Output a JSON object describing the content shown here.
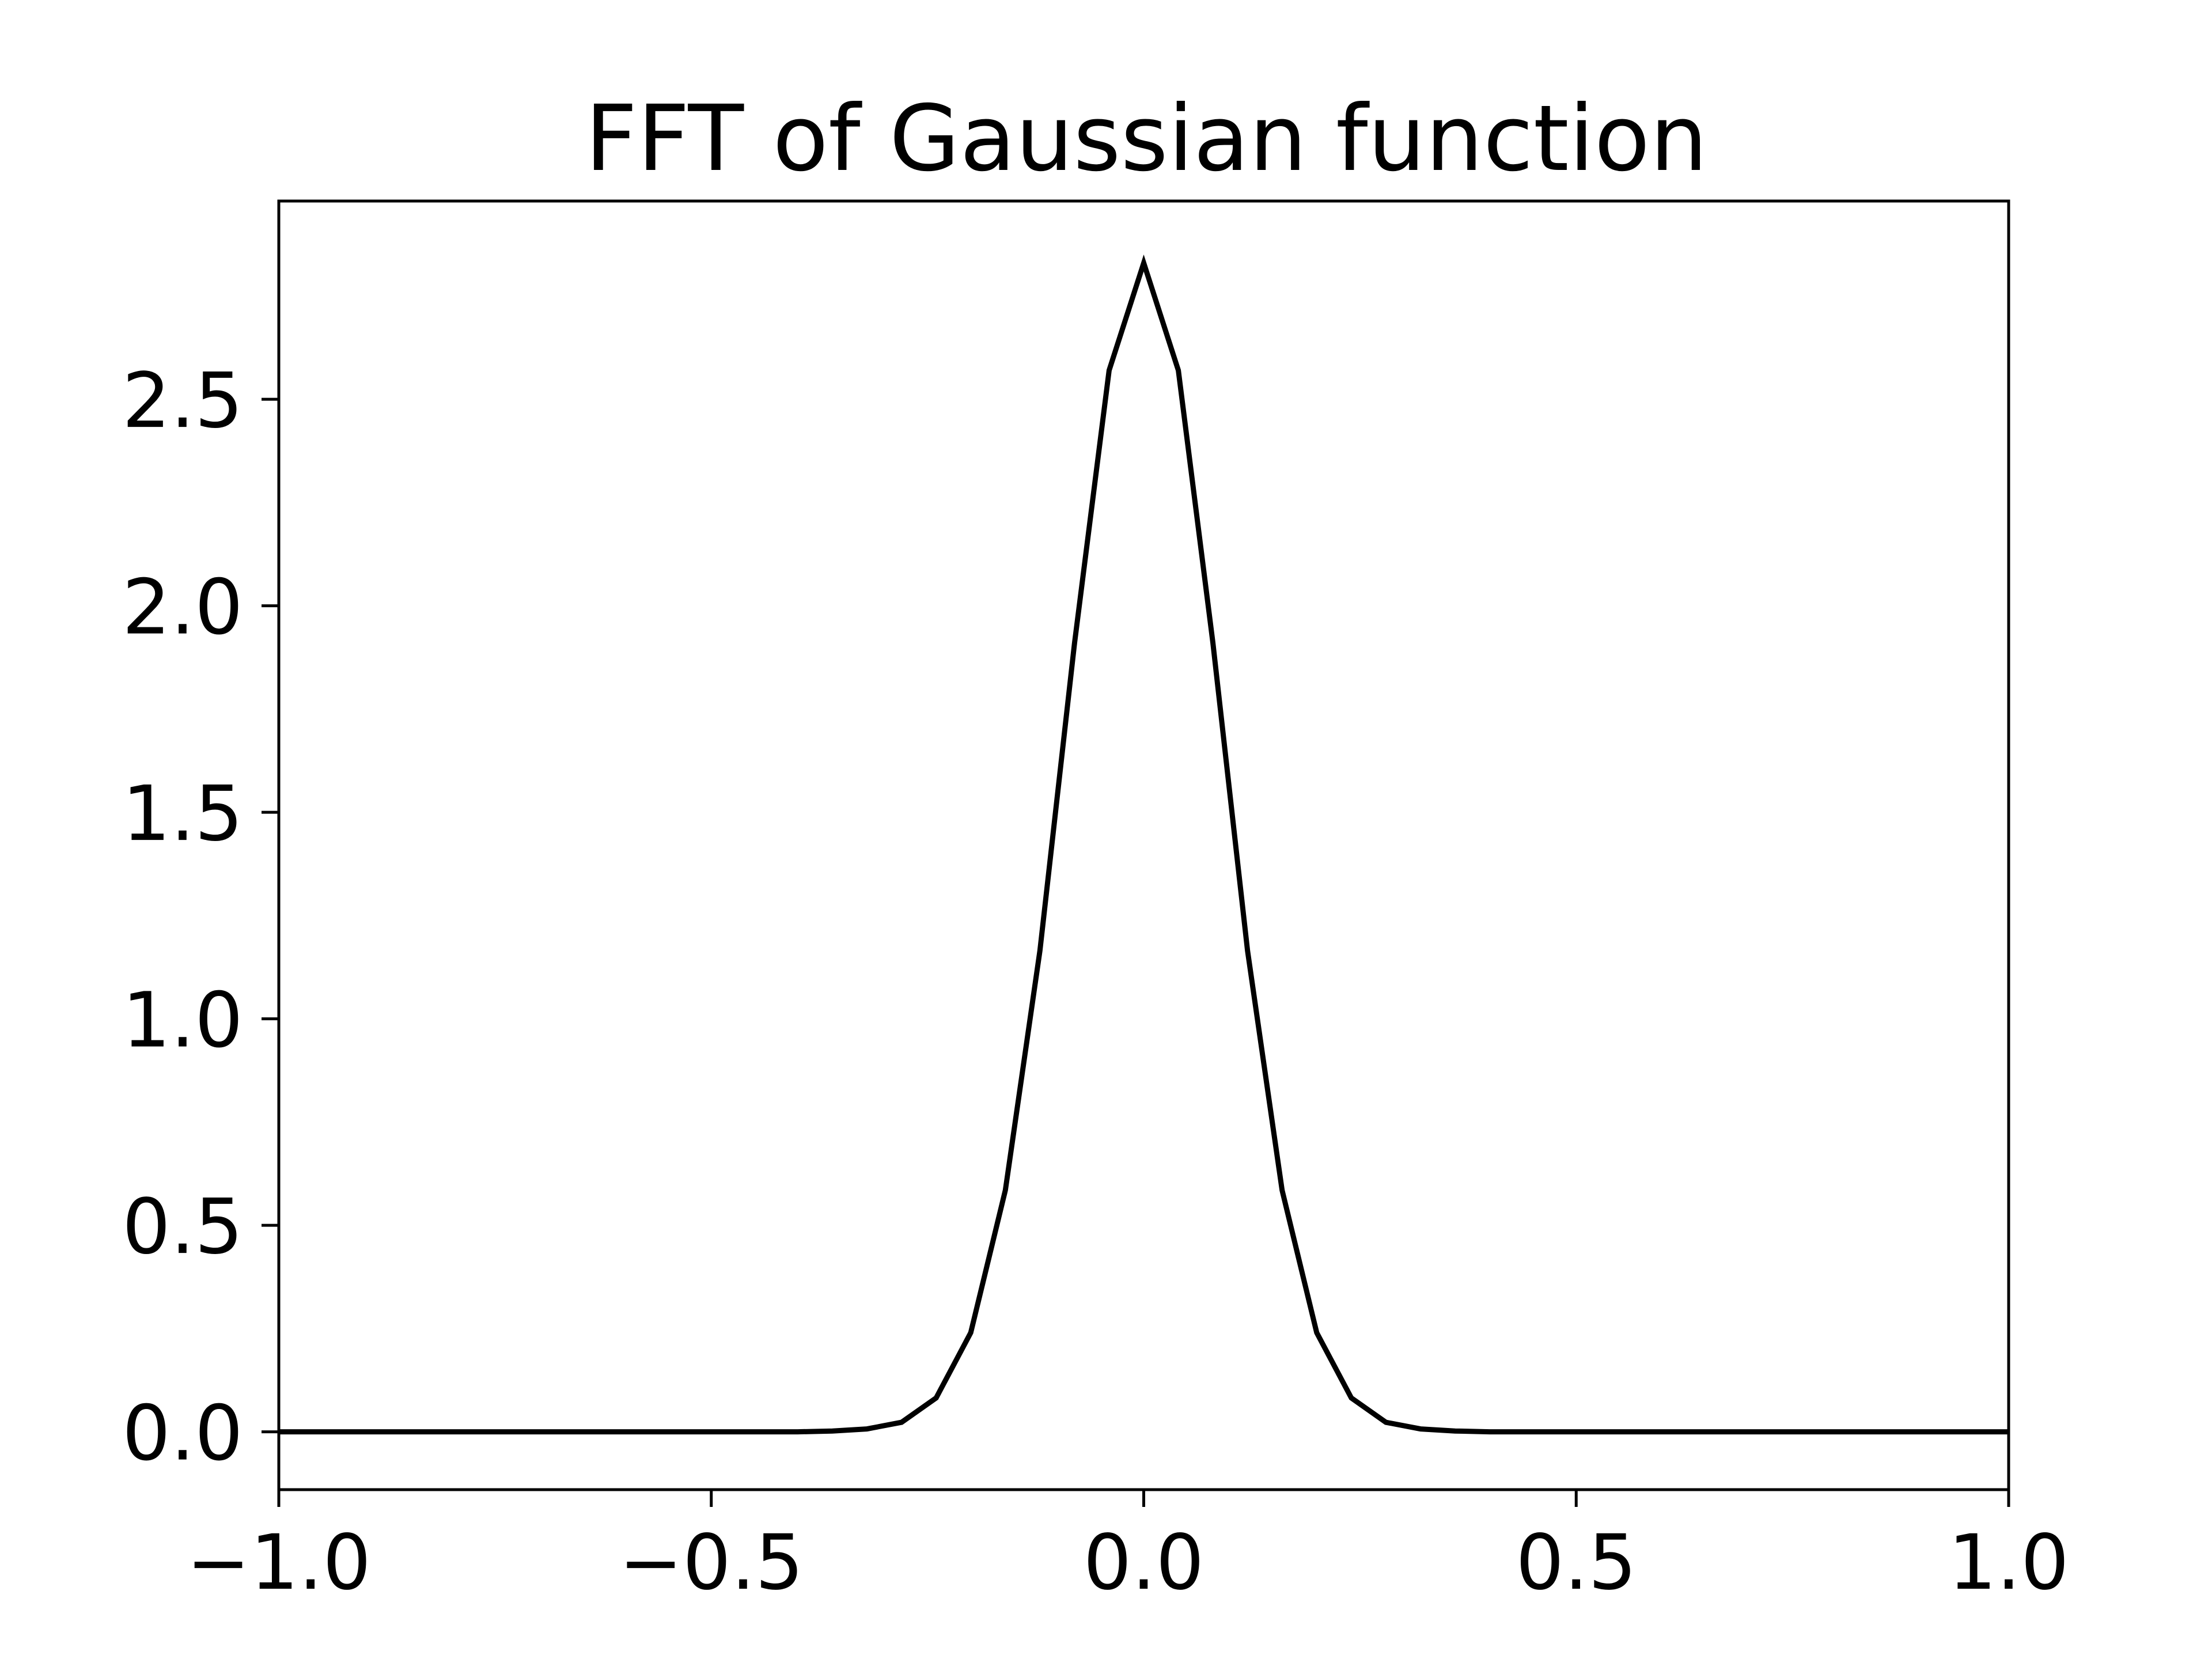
{
  "chart_data": {
    "type": "line",
    "title": "FFT of Gaussian function",
    "xlabel": "",
    "ylabel": "",
    "xlim": [
      -1.0,
      1.0
    ],
    "ylim": [
      -0.14,
      2.98
    ],
    "grid": false,
    "xticks": [
      {
        "value": -1.0,
        "label": "−1.0"
      },
      {
        "value": -0.5,
        "label": "−0.5"
      },
      {
        "value": 0.0,
        "label": "0.0"
      },
      {
        "value": 0.5,
        "label": "0.5"
      },
      {
        "value": 1.0,
        "label": "1.0"
      }
    ],
    "yticks": [
      {
        "value": 0.0,
        "label": "0.0"
      },
      {
        "value": 0.5,
        "label": "0.5"
      },
      {
        "value": 1.0,
        "label": "1.0"
      },
      {
        "value": 1.5,
        "label": "1.5"
      },
      {
        "value": 2.0,
        "label": "2.0"
      },
      {
        "value": 2.5,
        "label": "2.5"
      }
    ],
    "series": [
      {
        "color": "#000000",
        "x": [
          -1.0,
          -0.96,
          -0.92,
          -0.88,
          -0.84,
          -0.8,
          -0.76,
          -0.72,
          -0.68,
          -0.64,
          -0.6,
          -0.56,
          -0.52,
          -0.48,
          -0.44,
          -0.4,
          -0.36,
          -0.32,
          -0.28,
          -0.24,
          -0.2,
          -0.16,
          -0.12,
          -0.08,
          -0.04,
          0.0,
          0.04,
          0.08,
          0.12,
          0.16,
          0.2,
          0.24,
          0.28,
          0.32,
          0.36,
          0.4,
          0.44,
          0.48,
          0.52,
          0.56,
          0.6,
          0.64,
          0.68,
          0.72,
          0.76,
          0.8,
          0.84,
          0.88,
          0.92,
          0.96,
          1.0
        ],
        "y": [
          0.0,
          0.0,
          0.0,
          0.0,
          0.0,
          0.0,
          0.0,
          0.0,
          0.0,
          0.0,
          0.0,
          0.0,
          0.0,
          0.0,
          0.0,
          0.0,
          0.002,
          0.007,
          0.023,
          0.082,
          0.24,
          0.585,
          1.165,
          1.91,
          2.57,
          2.83,
          2.57,
          1.91,
          1.165,
          0.585,
          0.24,
          0.082,
          0.023,
          0.007,
          0.002,
          0.0,
          0.0,
          0.0,
          0.0,
          0.0,
          0.0,
          0.0,
          0.0,
          0.0,
          0.0,
          0.0,
          0.0,
          0.0,
          0.0,
          0.0,
          0.0
        ]
      }
    ]
  }
}
